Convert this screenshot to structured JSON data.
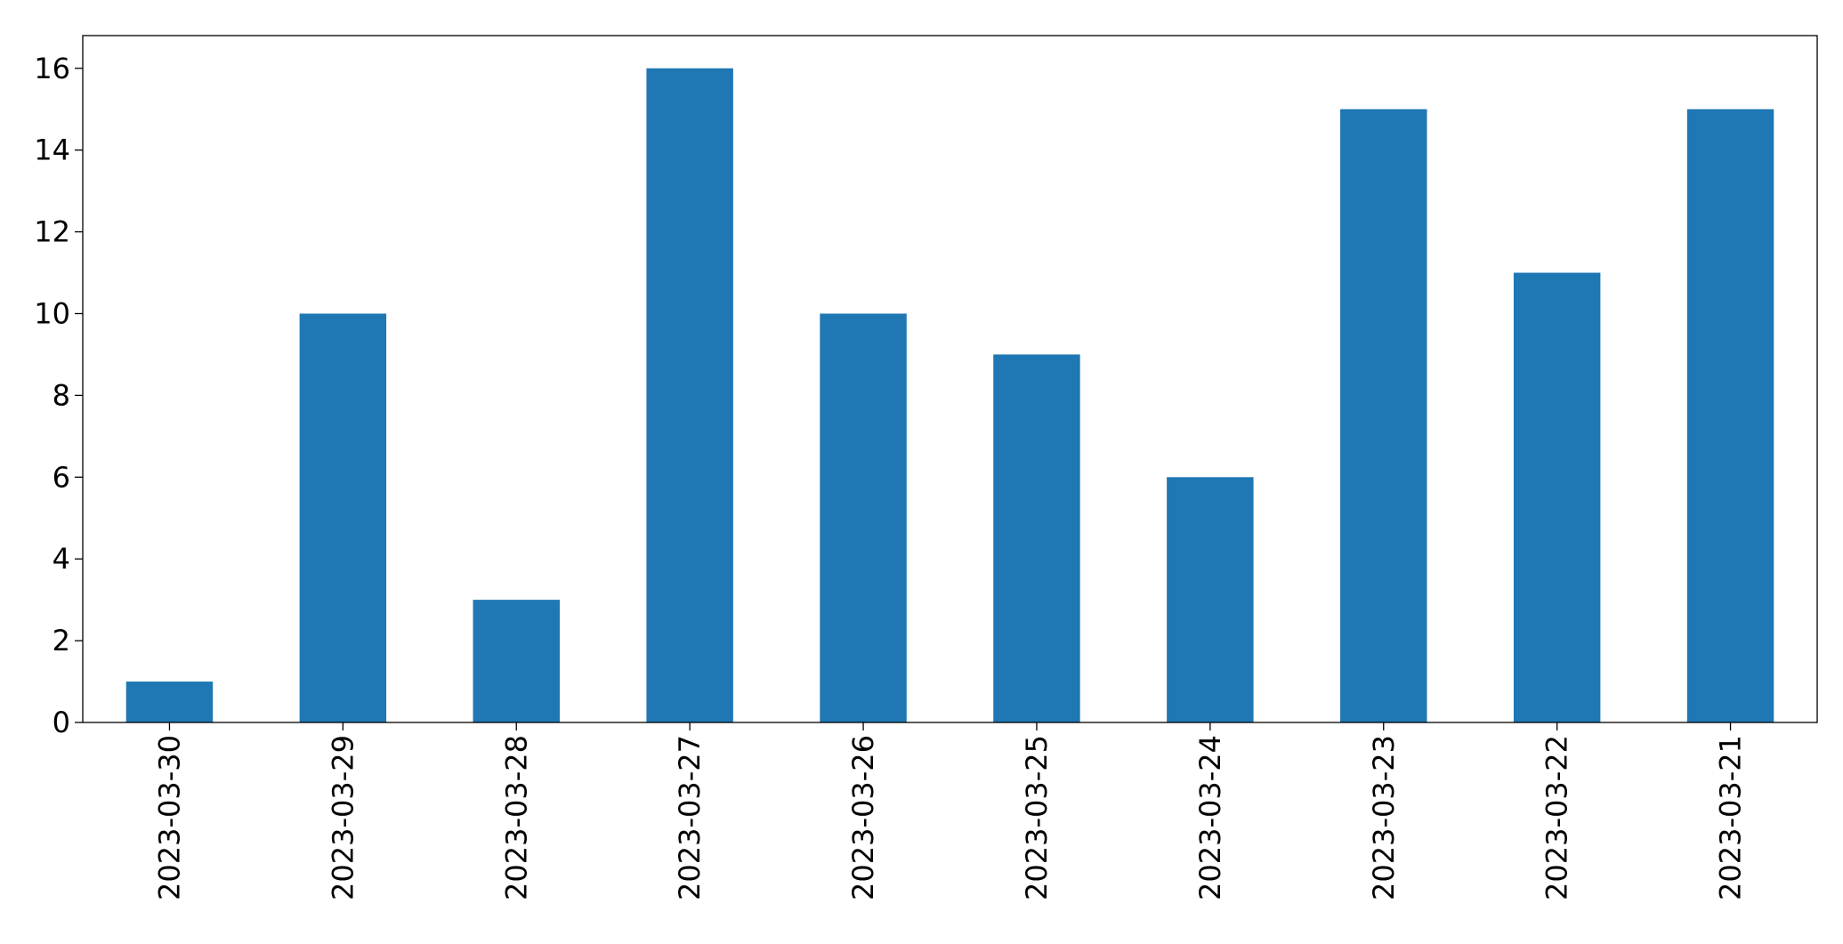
{
  "chart_data": {
    "type": "bar",
    "categories": [
      "2023-03-30",
      "2023-03-29",
      "2023-03-28",
      "2023-03-27",
      "2023-03-26",
      "2023-03-25",
      "2023-03-24",
      "2023-03-23",
      "2023-03-22",
      "2023-03-21"
    ],
    "values": [
      1,
      10,
      3,
      16,
      10,
      9,
      6,
      15,
      11,
      15
    ],
    "color": "#1f77b4",
    "ylim": [
      0,
      16.8
    ],
    "yticks": [
      0,
      2,
      4,
      6,
      8,
      10,
      12,
      14,
      16
    ],
    "grid": false
  }
}
